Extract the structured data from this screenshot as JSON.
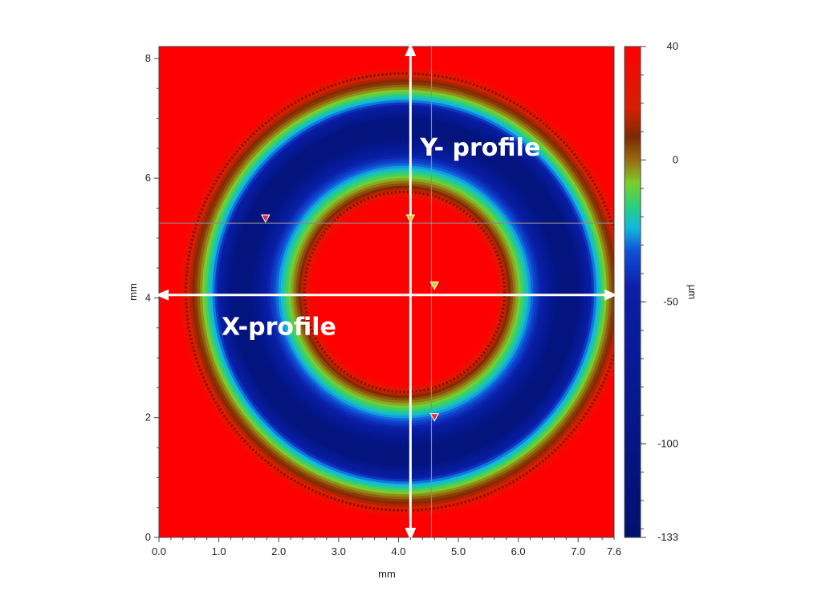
{
  "chart_data": {
    "type": "heatmap",
    "title": "",
    "xlabel": "mm",
    "ylabel": "mm",
    "xlim": [
      0,
      7.6
    ],
    "ylim": [
      0,
      8.2
    ],
    "x_ticks": [
      {
        "value": 0,
        "label": "0.0"
      },
      {
        "value": 1,
        "label": "1.0"
      },
      {
        "value": 2,
        "label": "2.0"
      },
      {
        "value": 3,
        "label": "3.0"
      },
      {
        "value": 4,
        "label": "4.0"
      },
      {
        "value": 5,
        "label": "5.0"
      },
      {
        "value": 6,
        "label": "6.0"
      },
      {
        "value": 7,
        "label": "7.0"
      },
      {
        "value": 7.6,
        "label": "7.6"
      }
    ],
    "y_ticks": [
      {
        "value": 0,
        "label": "0"
      },
      {
        "value": 2,
        "label": "2"
      },
      {
        "value": 4,
        "label": "4"
      },
      {
        "value": 6,
        "label": "6"
      },
      {
        "value": 8,
        "label": "8"
      }
    ],
    "colorbar": {
      "label": "µm",
      "range": [
        -133,
        40
      ],
      "ticks": [
        {
          "value": 40,
          "label": "40"
        },
        {
          "value": 0,
          "label": "0"
        },
        {
          "value": -50,
          "label": "-50"
        },
        {
          "value": -100,
          "label": "-100"
        },
        {
          "value": -133,
          "label": "-133"
        }
      ],
      "stops": [
        {
          "value": 40,
          "color": "#ff0000"
        },
        {
          "value": 18,
          "color": "#d42000"
        },
        {
          "value": 8,
          "color": "#7a2a00"
        },
        {
          "value": 0,
          "color": "#9a6a10"
        },
        {
          "value": -8,
          "color": "#7bcf2a"
        },
        {
          "value": -16,
          "color": "#2ad07a"
        },
        {
          "value": -24,
          "color": "#10b8e0"
        },
        {
          "value": -32,
          "color": "#1050d8"
        },
        {
          "value": -45,
          "color": "#0a1ea8"
        },
        {
          "value": -133,
          "color": "#001070"
        }
      ]
    },
    "surface": {
      "background_height": 40,
      "ring_center": [
        4.1,
        4.1
      ],
      "ring_profile": [
        {
          "r": 0.0,
          "height": 40
        },
        {
          "r": 1.55,
          "height": 40
        },
        {
          "r": 1.8,
          "height": 5
        },
        {
          "r": 2.0,
          "height": -15
        },
        {
          "r": 2.3,
          "height": -45
        },
        {
          "r": 2.6,
          "height": -110
        },
        {
          "r": 2.9,
          "height": -110
        },
        {
          "r": 3.2,
          "height": -30
        },
        {
          "r": 3.4,
          "height": -5
        },
        {
          "r": 3.6,
          "height": 15
        },
        {
          "r": 3.8,
          "height": 40
        }
      ]
    },
    "profiles": [
      {
        "name": "X-profile",
        "orientation": "horizontal",
        "position": 4.05
      },
      {
        "name": "Y- profile",
        "orientation": "vertical",
        "position": 4.2
      }
    ],
    "crosshair": {
      "x": 4.55,
      "y": 5.25
    },
    "markers": [
      {
        "x": 1.78,
        "y": 5.32,
        "color": "#e03030"
      },
      {
        "x": 4.2,
        "y": 5.32,
        "color": "#c8d820"
      },
      {
        "x": 4.6,
        "y": 4.2,
        "color": "#c8d820"
      },
      {
        "x": 4.6,
        "y": 2.0,
        "color": "#e03030"
      }
    ],
    "colors": {
      "frame": "#444444",
      "profile_line": "#ffffff",
      "crosshair": "#8a8a8a"
    }
  }
}
